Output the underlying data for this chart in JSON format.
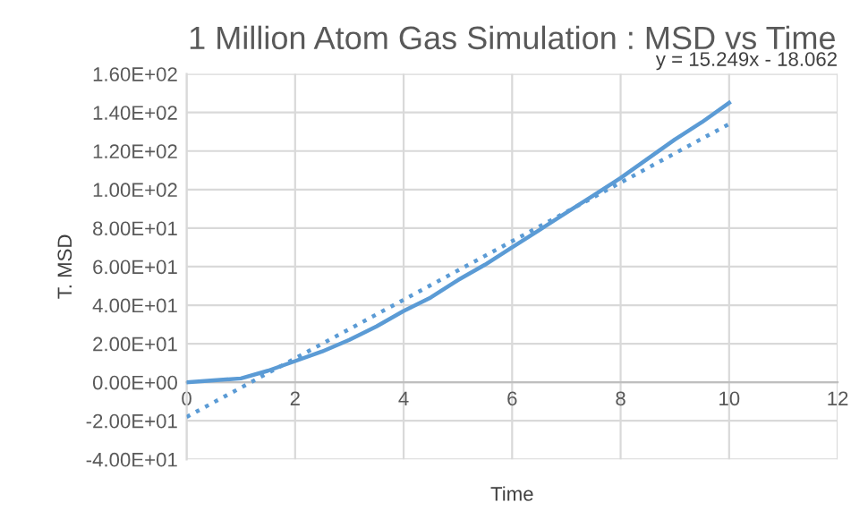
{
  "chart_data": {
    "type": "line",
    "title": "1 Million Atom Gas Simulation : MSD vs Time",
    "xlabel": "Time",
    "ylabel": "T. MSD",
    "series": [
      {
        "color": "#5b9bd5",
        "x": [
          0,
          0.5,
          1,
          1.5,
          2,
          2.5,
          3,
          3.5,
          4,
          4.5,
          5,
          5.5,
          6,
          6.5,
          7,
          7.5,
          8,
          8.5,
          9,
          9.5,
          10
        ],
        "values": [
          0,
          1,
          2,
          6,
          11,
          16,
          22,
          29,
          37,
          44,
          53,
          61,
          70,
          79,
          88,
          97,
          106,
          116,
          126,
          135,
          145
        ],
        "line_style": "solid"
      },
      {
        "color": "#5b9bd5",
        "x": [
          0,
          10
        ],
        "values": [
          -18,
          134
        ],
        "line_style": "dotted"
      }
    ],
    "annotations": [
      "y = 15.249x - 18.062"
    ],
    "xlim": [
      0,
      12
    ],
    "xticks": [
      0,
      2,
      4,
      6,
      8,
      10,
      12
    ],
    "ylim": [
      -40,
      160
    ],
    "yticks": [
      {
        "value": -40,
        "label": "-4.00E+01"
      },
      {
        "value": -20,
        "label": "-2.00E+01"
      },
      {
        "value": 0,
        "label": "0.00E+00"
      },
      {
        "value": 20,
        "label": "2.00E+01"
      },
      {
        "value": 40,
        "label": "4.00E+01"
      },
      {
        "value": 60,
        "label": "6.00E+01"
      },
      {
        "value": 80,
        "label": "8.00E+01"
      },
      {
        "value": 100,
        "label": "1.00E+02"
      },
      {
        "value": 120,
        "label": "1.20E+02"
      },
      {
        "value": 140,
        "label": "1.40E+02"
      },
      {
        "value": 160,
        "label": "1.60E+02"
      }
    ],
    "grid": true,
    "marker": "none"
  }
}
